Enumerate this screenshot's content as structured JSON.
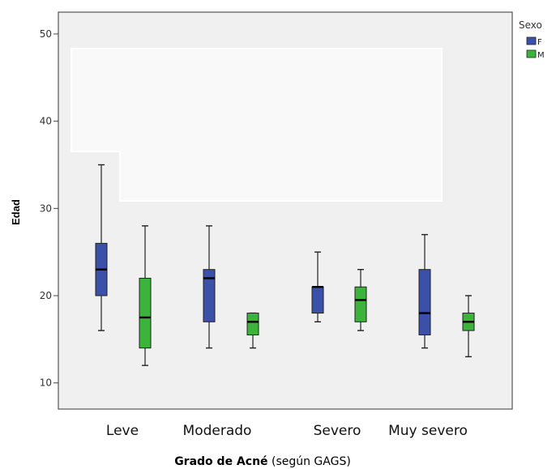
{
  "chart_data": {
    "type": "boxplot",
    "xlabel_bold": "Grado de Acné",
    "xlabel_rest": " (según GAGS)",
    "ylabel": "Edad",
    "ylim": [
      7,
      52.5
    ],
    "yticks": [
      10,
      20,
      30,
      40,
      50
    ],
    "categories": [
      "Leve",
      "Moderado",
      "Severo",
      "Muy severo"
    ],
    "legend": {
      "title": "Sexo",
      "placement": "top-right"
    },
    "grid": false,
    "series": [
      {
        "name": "F",
        "color": "#3b50a8",
        "boxes": [
          {
            "min": 16,
            "q1": 20,
            "median": 23,
            "q3": 26,
            "max": 35
          },
          {
            "min": 14,
            "q1": 17,
            "median": 22,
            "q3": 23,
            "max": 28
          },
          {
            "min": 17,
            "q1": 18,
            "median": 21,
            "q3": 21,
            "max": 25
          },
          {
            "min": 14,
            "q1": 15.5,
            "median": 18,
            "q3": 23,
            "max": 27
          }
        ]
      },
      {
        "name": "M",
        "color": "#3cb43c",
        "boxes": [
          {
            "min": 12,
            "q1": 14,
            "median": 17.5,
            "q3": 22,
            "max": 28
          },
          {
            "min": 14,
            "q1": 15.5,
            "median": 17,
            "q3": 18,
            "max": 18
          },
          {
            "min": 16,
            "q1": 17,
            "median": 19.5,
            "q3": 21,
            "max": 23
          },
          {
            "min": 13,
            "q1": 16,
            "median": 17,
            "q3": 18,
            "max": 20
          }
        ]
      }
    ]
  }
}
